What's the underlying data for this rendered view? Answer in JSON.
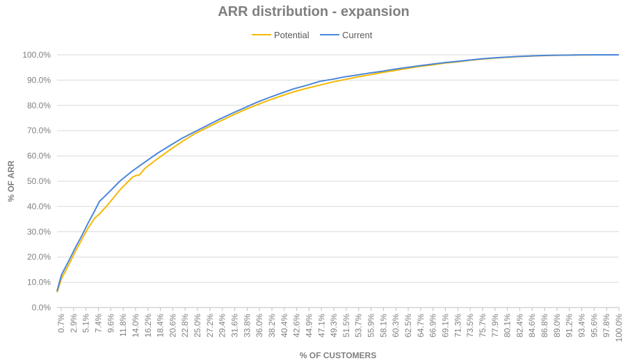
{
  "chart_data": {
    "type": "line",
    "title": "ARR distribution - expansion",
    "xlabel": "% OF CUSTOMERS",
    "ylabel": "% OF ARR",
    "legend_position": "top",
    "grid": true,
    "ylim": [
      0,
      100
    ],
    "x_ticks": [
      "0.7%",
      "2.9%",
      "5.1%",
      "7.4%",
      "9.6%",
      "11.8%",
      "14.0%",
      "16.2%",
      "18.4%",
      "20.6%",
      "22.8%",
      "25.0%",
      "27.2%",
      "29.4%",
      "31.6%",
      "33.8%",
      "36.0%",
      "38.2%",
      "40.4%",
      "42.6%",
      "44.9%",
      "47.1%",
      "49.3%",
      "51.5%",
      "53.7%",
      "55.9%",
      "58.1%",
      "60.3%",
      "62.5%",
      "64.7%",
      "66.9%",
      "69.1%",
      "71.3%",
      "73.5%",
      "75.7%",
      "77.9%",
      "80.1%",
      "82.4%",
      "84.6%",
      "86.8%",
      "89.0%",
      "91.2%",
      "93.4%",
      "95.6%",
      "97.8%",
      "100.0%"
    ],
    "y_ticks": [
      "0.0%",
      "10.0%",
      "20.0%",
      "30.0%",
      "40.0%",
      "50.0%",
      "60.0%",
      "70.0%",
      "80.0%",
      "90.0%",
      "100.0%"
    ],
    "series": [
      {
        "name": "Potential",
        "color": "#f5b800",
        "x": [
          0.7,
          1.5,
          2.9,
          4.0,
          5.1,
          6.2,
          7.4,
          8.2,
          9.6,
          11.8,
          14.0,
          14.6,
          15.3,
          16.2,
          18.4,
          20.6,
          22.8,
          25.0,
          27.2,
          29.4,
          31.6,
          33.8,
          36.0,
          38.2,
          40.4,
          42.6,
          44.9,
          47.1,
          49.3,
          51.5,
          53.7,
          55.9,
          58.1,
          60.3,
          62.5,
          64.7,
          66.9,
          69.1,
          71.3,
          73.5,
          75.7,
          77.9,
          80.1,
          82.4,
          84.6,
          86.8,
          89.0,
          91.2,
          93.4,
          95.6,
          97.8,
          100.0
        ],
        "values": [
          6.0,
          11.5,
          17.5,
          22.5,
          27.0,
          31.5,
          35.5,
          37.0,
          40.5,
          46.5,
          51.5,
          52.2,
          52.5,
          55.0,
          58.8,
          62.3,
          65.7,
          68.7,
          71.2,
          73.6,
          76.0,
          78.2,
          80.2,
          82.1,
          83.8,
          85.4,
          86.8,
          88.0,
          89.2,
          90.2,
          91.2,
          92.1,
          93.0,
          93.8,
          94.6,
          95.4,
          96.0,
          96.7,
          97.2,
          97.8,
          98.3,
          98.7,
          99.0,
          99.3,
          99.5,
          99.7,
          99.8,
          99.9,
          99.95,
          100.0,
          100.0,
          100.0
        ]
      },
      {
        "name": "Current",
        "color": "#4a86d9",
        "x": [
          0.7,
          1.5,
          2.9,
          4.0,
          5.1,
          6.2,
          7.4,
          8.2,
          9.6,
          11.8,
          14.0,
          16.2,
          18.4,
          20.6,
          22.8,
          25.0,
          27.2,
          29.4,
          31.6,
          33.8,
          36.0,
          38.2,
          40.4,
          42.6,
          44.9,
          47.1,
          49.3,
          51.5,
          53.7,
          55.9,
          58.1,
          60.3,
          62.5,
          64.7,
          66.9,
          69.1,
          71.3,
          73.5,
          75.7,
          77.9,
          80.1,
          82.4,
          84.6,
          86.8,
          89.0,
          91.2,
          93.4,
          95.6,
          97.8,
          100.0
        ],
        "values": [
          6.5,
          13.0,
          19.0,
          24.0,
          28.5,
          33.5,
          38.5,
          42.0,
          45.0,
          50.0,
          54.0,
          57.5,
          61.0,
          64.0,
          67.0,
          69.5,
          72.0,
          74.5,
          76.8,
          79.0,
          81.2,
          83.1,
          84.9,
          86.6,
          88.0,
          89.5,
          90.3,
          91.3,
          92.0,
          92.8,
          93.5,
          94.3,
          95.0,
          95.7,
          96.3,
          96.9,
          97.4,
          97.9,
          98.4,
          98.8,
          99.1,
          99.4,
          99.6,
          99.75,
          99.85,
          99.9,
          100.0,
          100.0,
          100.0,
          100.0
        ]
      }
    ]
  }
}
